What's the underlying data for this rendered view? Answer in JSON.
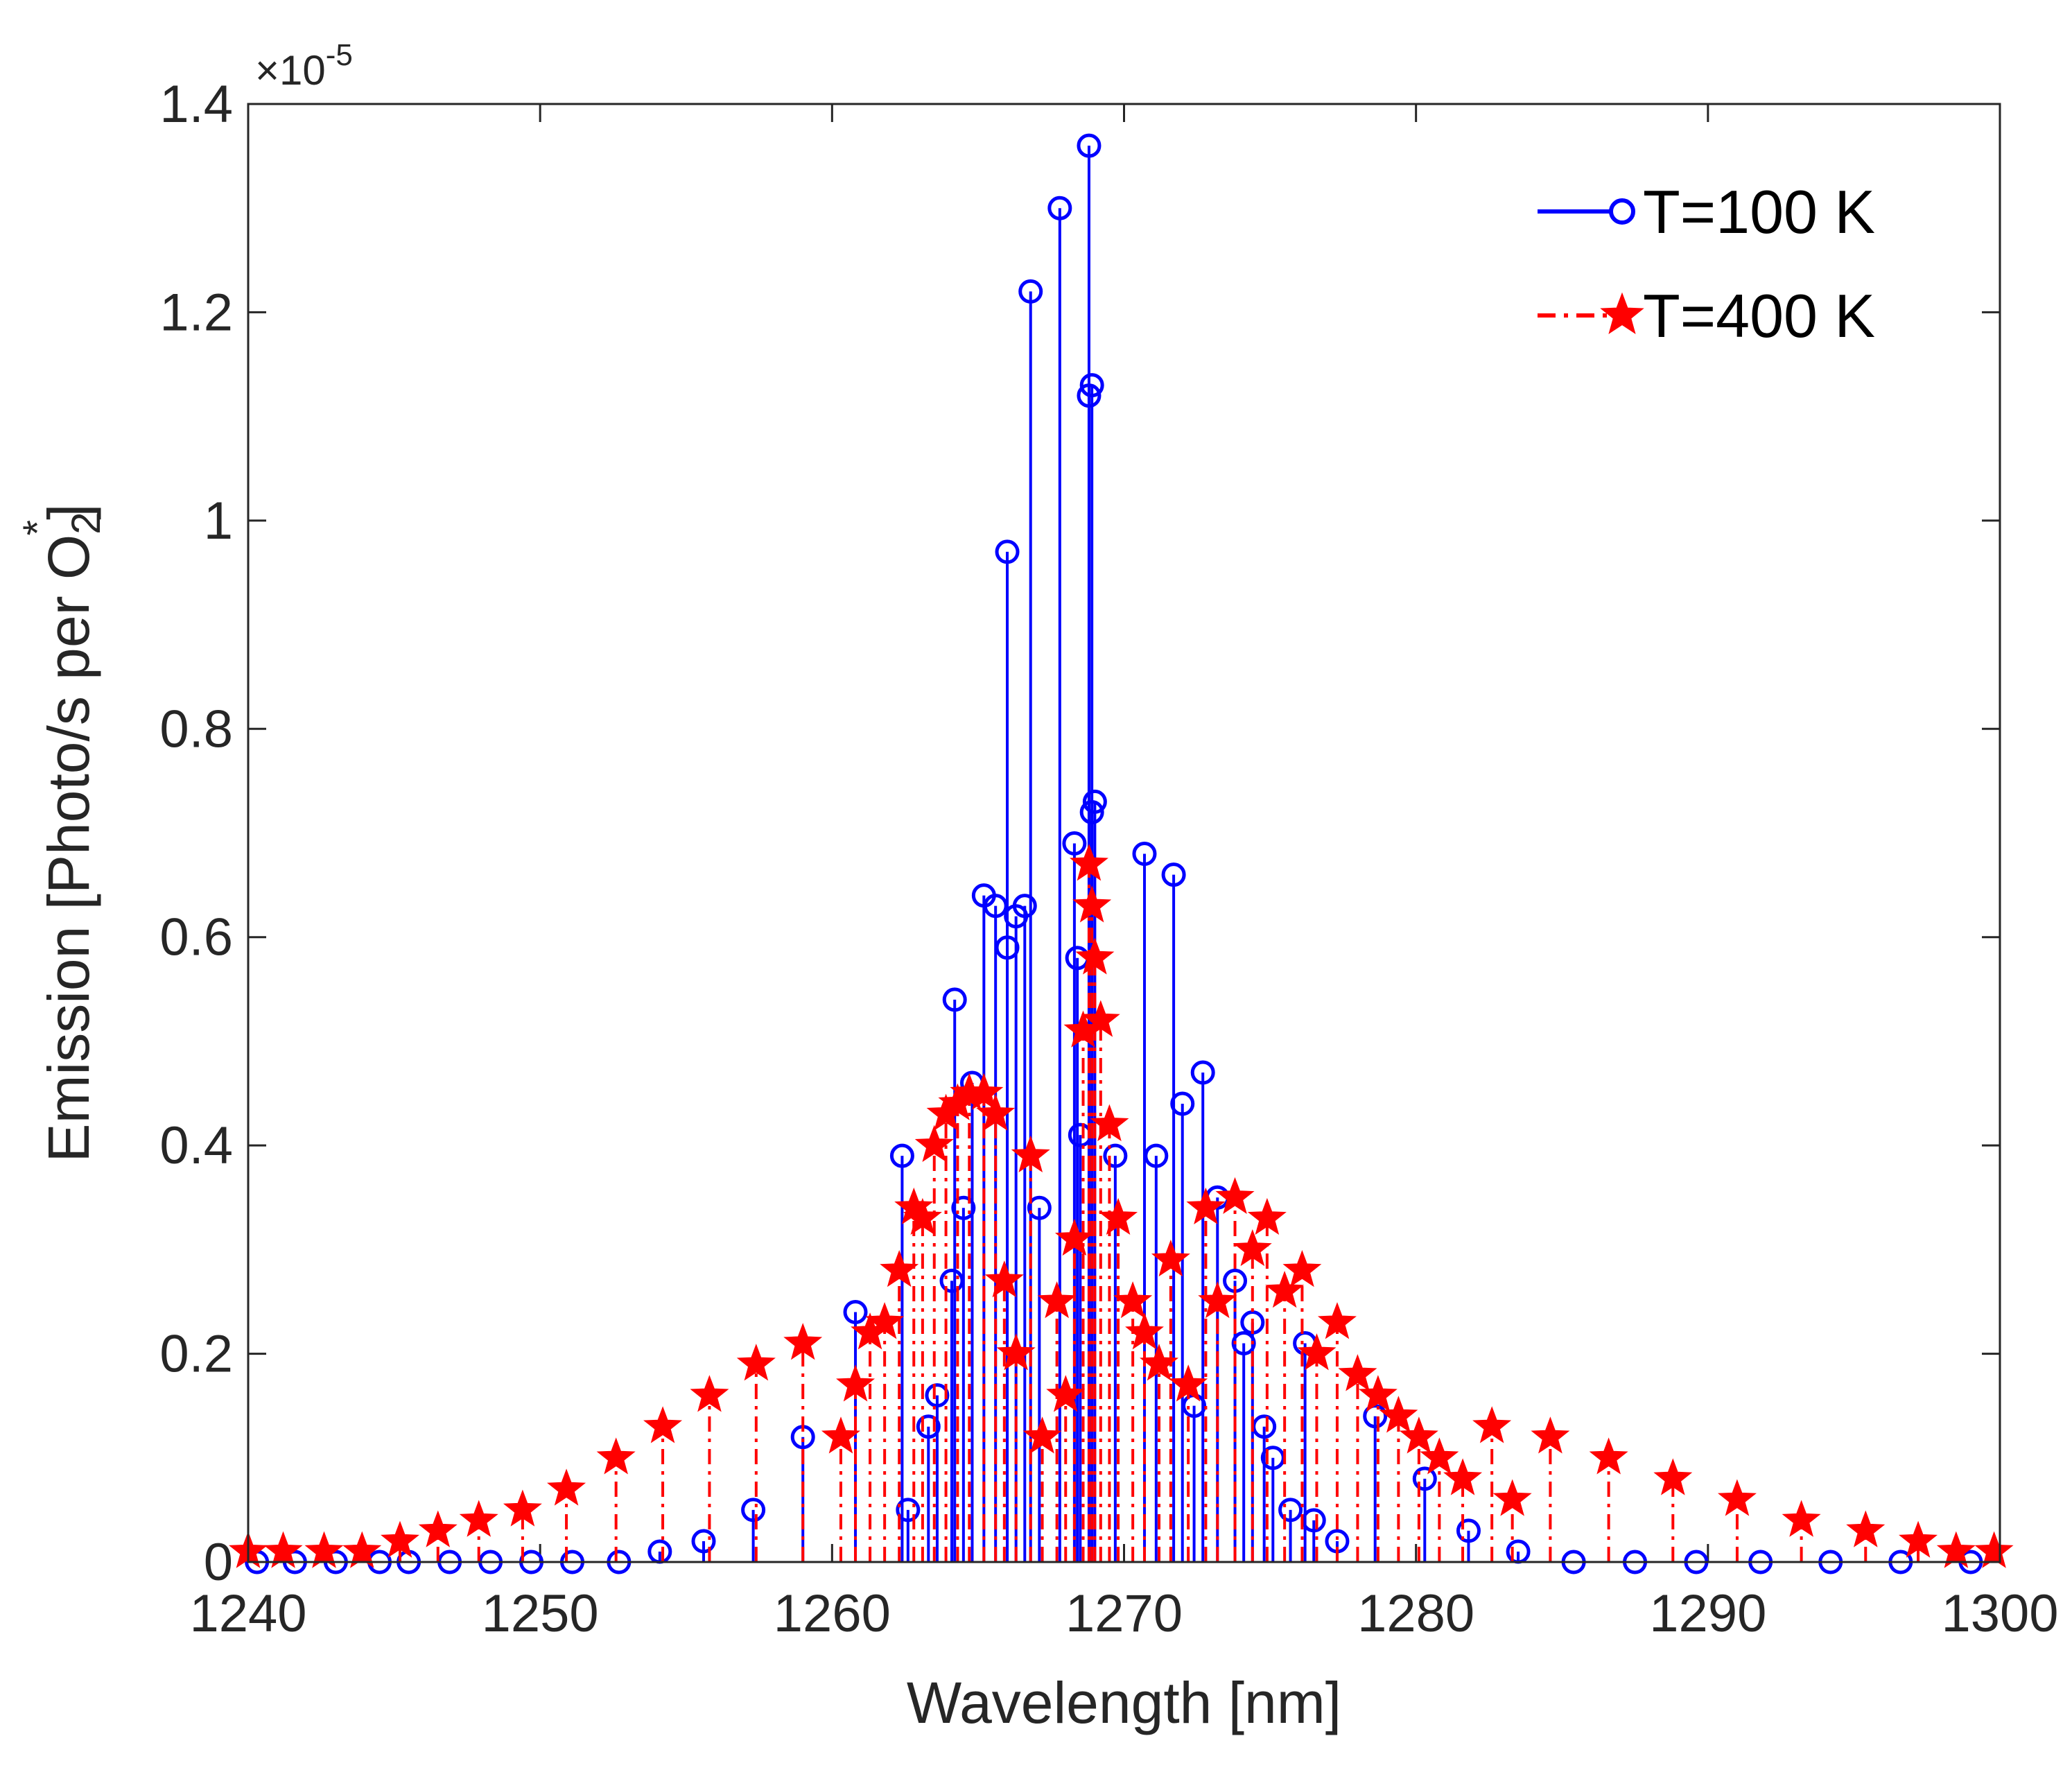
{
  "chart_data": {
    "type": "stem",
    "xlabel": "Wavelength [nm]",
    "ylabel_prefix": "Emission [Photo/s per O",
    "ylabel_sub": "2",
    "ylabel_sup": "*",
    "ylabel_suffix": "]",
    "y_exponent_base": "×10",
    "y_exponent_power": "-5",
    "xlim": [
      1240,
      1300
    ],
    "ylim": [
      0,
      1.4
    ],
    "xticks": [
      1240,
      1250,
      1260,
      1270,
      1280,
      1290,
      1300
    ],
    "xtick_labels": [
      "1240",
      "1250",
      "1260",
      "1270",
      "1280",
      "1290",
      "1300"
    ],
    "yticks": [
      0,
      0.2,
      0.4,
      0.6,
      0.8,
      1.0,
      1.2,
      1.4
    ],
    "ytick_labels": [
      "0",
      "0.2",
      "0.4",
      "0.6",
      "0.8",
      "1",
      "1.2",
      "1.4"
    ],
    "legend_position": "top-right",
    "series": [
      {
        "name": "T=100 K",
        "color": "#0000ff",
        "marker": "circle",
        "line": "solid",
        "points": [
          [
            1240.3,
            0.0
          ],
          [
            1241.6,
            0.0
          ],
          [
            1243.0,
            0.0
          ],
          [
            1244.5,
            0.0
          ],
          [
            1245.5,
            0.0
          ],
          [
            1246.9,
            0.0
          ],
          [
            1248.3,
            0.0
          ],
          [
            1249.7,
            0.0
          ],
          [
            1251.1,
            0.0
          ],
          [
            1252.7,
            0.0
          ],
          [
            1254.1,
            0.01
          ],
          [
            1255.6,
            0.02
          ],
          [
            1257.3,
            0.05
          ],
          [
            1259.0,
            0.12
          ],
          [
            1260.8,
            0.24
          ],
          [
            1262.4,
            0.39
          ],
          [
            1262.6,
            0.05
          ],
          [
            1263.3,
            0.13
          ],
          [
            1263.6,
            0.16
          ],
          [
            1264.1,
            0.27
          ],
          [
            1264.2,
            0.54
          ],
          [
            1264.5,
            0.34
          ],
          [
            1264.8,
            0.46
          ],
          [
            1265.2,
            0.64
          ],
          [
            1265.6,
            0.63
          ],
          [
            1266.0,
            0.59
          ],
          [
            1266.0,
            0.97
          ],
          [
            1266.3,
            0.62
          ],
          [
            1266.6,
            0.63
          ],
          [
            1266.8,
            1.22
          ],
          [
            1267.1,
            0.34
          ],
          [
            1267.8,
            1.3
          ],
          [
            1268.3,
            0.69
          ],
          [
            1268.4,
            0.58
          ],
          [
            1268.5,
            0.41
          ],
          [
            1268.8,
            1.36
          ],
          [
            1268.8,
            1.12
          ],
          [
            1268.9,
            1.13
          ],
          [
            1268.9,
            0.72
          ],
          [
            1269.0,
            0.73
          ],
          [
            1269.7,
            0.39
          ],
          [
            1270.7,
            0.68
          ],
          [
            1271.1,
            0.39
          ],
          [
            1271.7,
            0.66
          ],
          [
            1272.0,
            0.44
          ],
          [
            1272.4,
            0.15
          ],
          [
            1272.7,
            0.47
          ],
          [
            1273.2,
            0.35
          ],
          [
            1273.8,
            0.27
          ],
          [
            1274.1,
            0.21
          ],
          [
            1274.4,
            0.23
          ],
          [
            1274.8,
            0.13
          ],
          [
            1275.1,
            0.1
          ],
          [
            1275.7,
            0.05
          ],
          [
            1276.2,
            0.21
          ],
          [
            1276.5,
            0.04
          ],
          [
            1277.3,
            0.02
          ],
          [
            1278.6,
            0.14
          ],
          [
            1280.3,
            0.08
          ],
          [
            1281.8,
            0.03
          ],
          [
            1283.5,
            0.01
          ],
          [
            1285.4,
            0.0
          ],
          [
            1287.5,
            0.0
          ],
          [
            1289.6,
            0.0
          ],
          [
            1291.8,
            0.0
          ],
          [
            1294.2,
            0.0
          ],
          [
            1296.6,
            0.0
          ],
          [
            1299.0,
            0.0
          ]
        ]
      },
      {
        "name": "T=400 K",
        "color": "#ff0000",
        "marker": "star",
        "line": "dash-dot",
        "points": [
          [
            1240.0,
            0.01
          ],
          [
            1241.2,
            0.01
          ],
          [
            1242.6,
            0.01
          ],
          [
            1243.9,
            0.01
          ],
          [
            1245.2,
            0.02
          ],
          [
            1246.5,
            0.03
          ],
          [
            1247.9,
            0.04
          ],
          [
            1249.4,
            0.05
          ],
          [
            1250.9,
            0.07
          ],
          [
            1252.6,
            0.1
          ],
          [
            1254.2,
            0.13
          ],
          [
            1255.8,
            0.16
          ],
          [
            1257.4,
            0.19
          ],
          [
            1259.0,
            0.21
          ],
          [
            1260.3,
            0.12
          ],
          [
            1260.8,
            0.17
          ],
          [
            1261.3,
            0.22
          ],
          [
            1261.8,
            0.23
          ],
          [
            1262.3,
            0.28
          ],
          [
            1262.8,
            0.34
          ],
          [
            1263.1,
            0.33
          ],
          [
            1263.5,
            0.4
          ],
          [
            1263.9,
            0.43
          ],
          [
            1264.3,
            0.44
          ],
          [
            1264.7,
            0.45
          ],
          [
            1265.2,
            0.45
          ],
          [
            1265.6,
            0.43
          ],
          [
            1265.9,
            0.27
          ],
          [
            1266.3,
            0.2
          ],
          [
            1266.8,
            0.39
          ],
          [
            1267.2,
            0.12
          ],
          [
            1267.7,
            0.25
          ],
          [
            1268.0,
            0.16
          ],
          [
            1268.3,
            0.31
          ],
          [
            1268.6,
            0.51
          ],
          [
            1268.8,
            0.67
          ],
          [
            1268.9,
            0.63
          ],
          [
            1269.0,
            0.58
          ],
          [
            1269.2,
            0.52
          ],
          [
            1269.5,
            0.42
          ],
          [
            1269.8,
            0.33
          ],
          [
            1270.3,
            0.25
          ],
          [
            1270.7,
            0.22
          ],
          [
            1271.2,
            0.19
          ],
          [
            1271.6,
            0.29
          ],
          [
            1272.2,
            0.17
          ],
          [
            1272.8,
            0.34
          ],
          [
            1273.2,
            0.25
          ],
          [
            1273.8,
            0.35
          ],
          [
            1274.4,
            0.3
          ],
          [
            1274.9,
            0.33
          ],
          [
            1275.5,
            0.26
          ],
          [
            1276.1,
            0.28
          ],
          [
            1276.6,
            0.2
          ],
          [
            1277.3,
            0.23
          ],
          [
            1278.0,
            0.18
          ],
          [
            1278.7,
            0.16
          ],
          [
            1279.4,
            0.14
          ],
          [
            1280.1,
            0.12
          ],
          [
            1280.8,
            0.1
          ],
          [
            1281.6,
            0.08
          ],
          [
            1282.6,
            0.13
          ],
          [
            1283.3,
            0.06
          ],
          [
            1284.6,
            0.12
          ],
          [
            1286.6,
            0.1
          ],
          [
            1288.8,
            0.08
          ],
          [
            1291.0,
            0.06
          ],
          [
            1293.2,
            0.04
          ],
          [
            1295.4,
            0.03
          ],
          [
            1297.2,
            0.02
          ],
          [
            1298.5,
            0.01
          ],
          [
            1299.8,
            0.01
          ]
        ]
      }
    ]
  }
}
